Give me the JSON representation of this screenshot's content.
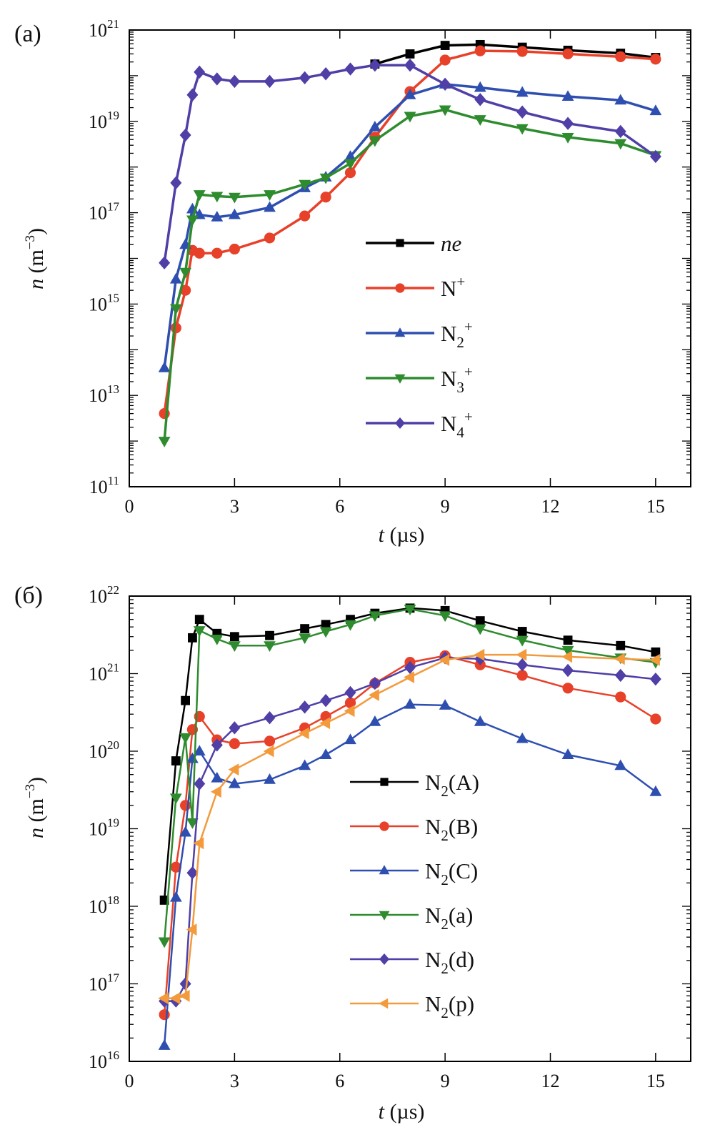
{
  "chart_data": [
    {
      "type": "line",
      "panel_label": "(a)",
      "title": "",
      "xlabel": "t (µs)",
      "xlabel_var": "t",
      "xlabel_unit": " (µs)",
      "ylabel": "n (m⁻³)",
      "ylabel_var": "n",
      "ylabel_unit": " (m",
      "ylabel_sup": "−3",
      "ylabel_close": ")",
      "yscale": "log",
      "xlim": [
        0,
        16
      ],
      "ylim_exp": [
        11,
        21
      ],
      "xticks": [
        0,
        3,
        6,
        9,
        12,
        15
      ],
      "xtick_labels": [
        "0",
        "3",
        "6",
        "9",
        "12",
        "15"
      ],
      "yticks_exp": [
        11,
        13,
        15,
        17,
        19,
        21
      ],
      "ytick_base": "10",
      "grid": false,
      "legend_position": "center",
      "series": [
        {
          "name": "ne",
          "italic": true,
          "sub": "",
          "sup": "",
          "suffix": "",
          "color": "#000000",
          "marker": "square",
          "x": [
            7.0,
            8.0,
            9.0,
            10.0,
            11.2,
            12.5,
            14.0,
            15.0
          ],
          "y": [
            1.8e+20,
            3e+20,
            4.6e+20,
            4.8e+20,
            4.2e+20,
            3.6e+20,
            3.1e+20,
            2.5e+20
          ]
        },
        {
          "name": "N",
          "italic": false,
          "sub": "",
          "sup": "+",
          "suffix": "",
          "color": "#e8412a",
          "marker": "circle",
          "x": [
            1.0,
            1.33,
            1.6,
            1.8,
            2.0,
            2.5,
            3.0,
            4.0,
            5.0,
            5.6,
            6.3,
            7.0,
            8.0,
            9.0,
            10.0,
            11.2,
            12.5,
            14.0,
            15.0
          ],
          "y": [
            4000000000000.0,
            300000000000000.0,
            2000000000000000.0,
            1.5e+16,
            1.3e+16,
            1.3e+16,
            1.6e+16,
            2.8e+16,
            8.5e+16,
            2.2e+17,
            7.5e+17,
            4.5e+18,
            4.5e+19,
            2.2e+20,
            3.5e+20,
            3.4e+20,
            3e+20,
            2.6e+20,
            2.3e+20
          ]
        },
        {
          "name": "N",
          "italic": false,
          "sub": "2",
          "sup": "+",
          "suffix": "",
          "color": "#2e4fb0",
          "marker": "triangle-up",
          "x": [
            1.0,
            1.33,
            1.6,
            1.8,
            2.0,
            2.5,
            3.0,
            4.0,
            5.0,
            5.6,
            6.3,
            7.0,
            8.0,
            9.0,
            10.0,
            11.2,
            12.5,
            14.0,
            15.0
          ],
          "y": [
            40000000000000.0,
            3500000000000000.0,
            2e+16,
            1.2e+17,
            9e+16,
            8e+16,
            9e+16,
            1.3e+17,
            3.5e+17,
            6e+17,
            1.7e+18,
            7.5e+18,
            3.8e+19,
            6.5e+19,
            5.5e+19,
            4.3e+19,
            3.5e+19,
            2.9e+19,
            1.7e+19
          ]
        },
        {
          "name": "N",
          "italic": false,
          "sub": "3",
          "sup": "+",
          "suffix": "",
          "color": "#2e8b2e",
          "marker": "triangle-down",
          "x": [
            1.0,
            1.33,
            1.6,
            1.8,
            2.0,
            2.5,
            3.0,
            4.0,
            5.0,
            5.6,
            6.3,
            7.0,
            8.0,
            9.0,
            10.0,
            11.2,
            12.5,
            14.0,
            15.0
          ],
          "y": [
            1000000000000.0,
            800000000000000.0,
            5000000000000000.0,
            7e+16,
            2.5e+17,
            2.3e+17,
            2.2e+17,
            2.5e+17,
            4.2e+17,
            5.8e+17,
            1.2e+18,
            3.8e+18,
            1.3e+19,
            1.8e+19,
            1.1e+19,
            7e+18,
            4.5e+18,
            3.3e+18,
            1.8e+18
          ]
        },
        {
          "name": "N",
          "italic": false,
          "sub": "4",
          "sup": "+",
          "suffix": "",
          "color": "#4f3fa6",
          "marker": "diamond",
          "x": [
            1.0,
            1.33,
            1.6,
            1.8,
            2.0,
            2.5,
            3.0,
            4.0,
            5.0,
            5.6,
            6.3,
            7.0,
            8.0,
            9.0,
            10.0,
            11.2,
            12.5,
            14.0,
            15.0
          ],
          "y": [
            8000000000000000.0,
            4.5e+17,
            5e+18,
            3.8e+19,
            1.2e+20,
            8.5e+19,
            7.5e+19,
            7.5e+19,
            9e+19,
            1.1e+20,
            1.4e+20,
            1.7e+20,
            1.7e+20,
            6.5e+19,
            3e+19,
            1.6e+19,
            9e+18,
            6e+18,
            1.7e+18
          ]
        }
      ]
    },
    {
      "type": "line",
      "panel_label": "(б)",
      "title": "",
      "xlabel": "t (µs)",
      "xlabel_var": "t",
      "xlabel_unit": " (µs)",
      "ylabel": "n (m⁻³)",
      "ylabel_var": "n",
      "ylabel_unit": " (m",
      "ylabel_sup": "−3",
      "ylabel_close": ")",
      "yscale": "log",
      "xlim": [
        0,
        16
      ],
      "ylim_exp": [
        16,
        22
      ],
      "xticks": [
        0,
        3,
        6,
        9,
        12,
        15
      ],
      "xtick_labels": [
        "0",
        "3",
        "6",
        "9",
        "12",
        "15"
      ],
      "yticks_exp": [
        16,
        17,
        18,
        19,
        20,
        21,
        22
      ],
      "ytick_base": "10",
      "grid": false,
      "legend_position": "center",
      "series": [
        {
          "name": "N",
          "italic": false,
          "sub": "2",
          "sup": "",
          "suffix": "(A)",
          "color": "#000000",
          "marker": "square",
          "x": [
            1.0,
            1.33,
            1.6,
            1.8,
            2.0,
            2.5,
            3.0,
            4.0,
            5.0,
            5.6,
            6.3,
            7.0,
            8.0,
            9.0,
            10.0,
            11.2,
            12.5,
            14.0,
            15.0
          ],
          "y": [
            1.2e+18,
            7.5e+19,
            4.5e+20,
            2.9e+21,
            5e+21,
            3.3e+21,
            3e+21,
            3.1e+21,
            3.8e+21,
            4.3e+21,
            5e+21,
            6e+21,
            7e+21,
            6.5e+21,
            4.8e+21,
            3.5e+21,
            2.7e+21,
            2.3e+21,
            1.9e+21
          ]
        },
        {
          "name": "N",
          "italic": false,
          "sub": "2",
          "sup": "",
          "suffix": "(B)",
          "color": "#e8412a",
          "marker": "circle",
          "x": [
            1.0,
            1.33,
            1.6,
            1.8,
            2.0,
            2.5,
            3.0,
            4.0,
            5.0,
            5.6,
            6.3,
            7.0,
            8.0,
            9.0,
            10.0,
            11.2,
            12.5,
            14.0,
            15.0
          ],
          "y": [
            4e+16,
            3.2e+18,
            2e+19,
            1.9e+20,
            2.8e+20,
            1.4e+20,
            1.25e+20,
            1.35e+20,
            2e+20,
            2.8e+20,
            4.2e+20,
            7.5e+20,
            1.4e+21,
            1.7e+21,
            1.3e+21,
            9.5e+20,
            6.5e+20,
            5e+20,
            2.6e+20
          ]
        },
        {
          "name": "N",
          "italic": false,
          "sub": "2",
          "sup": "",
          "suffix": "(C)",
          "color": "#2e4fb0",
          "marker": "triangle-up",
          "x": [
            1.0,
            1.33,
            1.6,
            1.8,
            2.0,
            2.5,
            3.0,
            4.0,
            5.0,
            5.6,
            6.3,
            7.0,
            8.0,
            9.0,
            10.0,
            11.2,
            12.5,
            14.0,
            15.0
          ],
          "y": [
            1.6e+16,
            1.3e+18,
            9e+18,
            8e+19,
            1e+20,
            4.5e+19,
            3.8e+19,
            4.3e+19,
            6.5e+19,
            9e+19,
            1.4e+20,
            2.4e+20,
            4e+20,
            3.9e+20,
            2.4e+20,
            1.45e+20,
            9e+19,
            6.5e+19,
            3e+19
          ]
        },
        {
          "name": "N",
          "italic": false,
          "sub": "2",
          "sup": "",
          "suffix": "(a)",
          "color": "#2e8b2e",
          "marker": "triangle-down",
          "x": [
            1.0,
            1.33,
            1.6,
            1.8,
            2.0,
            2.5,
            3.0,
            4.0,
            5.0,
            5.6,
            6.3,
            7.0,
            8.0,
            9.0,
            10.0,
            11.2,
            12.5,
            14.0,
            15.0
          ],
          "y": [
            3.5e+17,
            2.5e+19,
            1.5e+20,
            1.2e+19,
            3.6e+21,
            2.8e+21,
            2.3e+21,
            2.3e+21,
            2.9e+21,
            3.5e+21,
            4.3e+21,
            5.6e+21,
            6.8e+21,
            5.6e+21,
            3.8e+21,
            2.7e+21,
            2e+21,
            1.6e+21,
            1.4e+21
          ]
        },
        {
          "name": "N",
          "italic": false,
          "sub": "2",
          "sup": "",
          "suffix": "(d)",
          "color": "#4f3fa6",
          "marker": "diamond",
          "x": [
            1.0,
            1.33,
            1.6,
            1.8,
            2.0,
            2.5,
            3.0,
            4.0,
            5.0,
            5.6,
            6.3,
            7.0,
            8.0,
            9.0,
            10.0,
            11.2,
            12.5,
            14.0,
            15.0
          ],
          "y": [
            6e+16,
            6e+16,
            1e+17,
            2.7e+18,
            3.8e+19,
            1.2e+20,
            2e+20,
            2.7e+20,
            3.7e+20,
            4.5e+20,
            5.7e+20,
            7.5e+20,
            1.2e+21,
            1.6e+21,
            1.55e+21,
            1.3e+21,
            1.1e+21,
            9.5e+20,
            8.5e+20
          ]
        },
        {
          "name": "N",
          "italic": false,
          "sub": "2",
          "sup": "",
          "suffix": "(p)",
          "color": "#f39a3c",
          "marker": "triangle-left",
          "x": [
            1.0,
            1.33,
            1.6,
            1.8,
            2.0,
            2.5,
            3.0,
            4.0,
            5.0,
            5.6,
            6.3,
            7.0,
            8.0,
            9.0,
            10.0,
            11.2,
            12.5,
            14.0,
            15.0
          ],
          "y": [
            6.5e+16,
            6.5e+16,
            7e+16,
            5e+17,
            6.5e+18,
            3e+19,
            5.8e+19,
            1e+20,
            1.7e+20,
            2.3e+20,
            3.3e+20,
            5.3e+20,
            9e+20,
            1.5e+21,
            1.75e+21,
            1.75e+21,
            1.65e+21,
            1.55e+21,
            1.5e+21
          ]
        }
      ]
    }
  ]
}
